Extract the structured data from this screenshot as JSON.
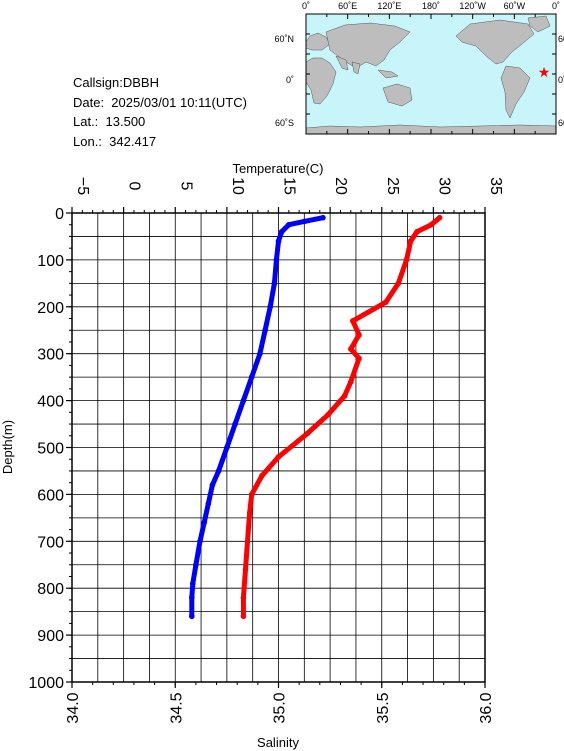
{
  "info": {
    "callsign": "Callsign:DBBH",
    "date": "Date:  2025/03/01 10:11(UTC)",
    "lat": "Lat.:  13.500",
    "lon": "Lon.:  342.417"
  },
  "map": {
    "top_labels": [
      "0˚",
      "60˚E",
      "120˚E",
      "180˚",
      "120˚W",
      "60˚W",
      "0˚"
    ],
    "right_labels": [
      "60˚N",
      "0˚",
      "60˚S"
    ],
    "colors": {
      "ocean": "#c8f5fa",
      "land": "#bdbdbd",
      "marker": "#ff0000"
    }
  },
  "chart_data": {
    "type": "line",
    "xlabel_top": "Temperature(C)",
    "xlabel_bottom": "Salinity",
    "ylabel": "Depth(m)",
    "temperature_axis": {
      "range": [
        -5,
        35
      ],
      "ticks": [
        "−5",
        "0",
        "5",
        "10",
        "15",
        "20",
        "25",
        "30",
        "35"
      ]
    },
    "salinity_axis": {
      "range": [
        34.0,
        36.0
      ],
      "ticks": [
        "34.0",
        "34.5",
        "35.0",
        "35.5",
        "36.0"
      ]
    },
    "depth_axis": {
      "range": [
        0,
        1000
      ],
      "ticks": [
        "0",
        "100",
        "200",
        "300",
        "400",
        "500",
        "600",
        "700",
        "800",
        "900",
        "1000"
      ]
    },
    "grid": true,
    "series": [
      {
        "color": "#0000ff",
        "axis": "temperature",
        "points": [
          [
            19.3,
            10
          ],
          [
            17.5,
            18
          ],
          [
            16.0,
            25
          ],
          [
            15.3,
            40
          ],
          [
            15.0,
            60
          ],
          [
            14.8,
            100
          ],
          [
            14.6,
            150
          ],
          [
            14.2,
            200
          ],
          [
            13.7,
            250
          ],
          [
            13.2,
            300
          ],
          [
            12.4,
            350
          ],
          [
            11.6,
            400
          ],
          [
            10.8,
            450
          ],
          [
            10.0,
            500
          ],
          [
            9.2,
            550
          ],
          [
            8.6,
            580
          ],
          [
            8.2,
            620
          ],
          [
            7.8,
            660
          ],
          [
            7.4,
            700
          ],
          [
            7.0,
            750
          ],
          [
            6.7,
            790
          ],
          [
            6.6,
            820
          ],
          [
            6.6,
            860
          ]
        ]
      },
      {
        "color": "#ff0000",
        "axis": "salinity",
        "points": [
          [
            35.78,
            10
          ],
          [
            35.74,
            25
          ],
          [
            35.67,
            40
          ],
          [
            35.64,
            60
          ],
          [
            35.62,
            100
          ],
          [
            35.58,
            150
          ],
          [
            35.52,
            190
          ],
          [
            35.36,
            230
          ],
          [
            35.39,
            260
          ],
          [
            35.35,
            290
          ],
          [
            35.39,
            310
          ],
          [
            35.35,
            360
          ],
          [
            35.32,
            390
          ],
          [
            35.24,
            430
          ],
          [
            35.14,
            470
          ],
          [
            35.0,
            520
          ],
          [
            34.92,
            560
          ],
          [
            34.87,
            600
          ],
          [
            34.86,
            640
          ],
          [
            34.85,
            700
          ],
          [
            34.84,
            760
          ],
          [
            34.83,
            820
          ],
          [
            34.83,
            860
          ]
        ]
      }
    ]
  }
}
